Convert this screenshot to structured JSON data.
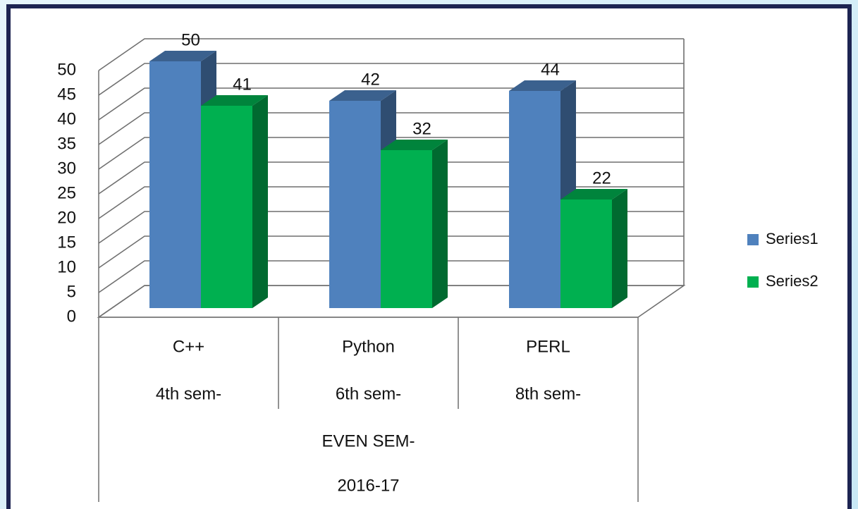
{
  "chart_data": {
    "type": "bar3d",
    "categories": [
      "C++",
      "Python",
      "PERL"
    ],
    "subcategories": [
      "4th sem-",
      "6th sem-",
      "8th sem-"
    ],
    "group_labels": [
      "EVEN SEM-",
      "2016-17"
    ],
    "series": [
      {
        "name": "Series1",
        "color": "#4f81bd",
        "values": [
          50,
          42,
          44
        ]
      },
      {
        "name": "Series2",
        "color": "#00b050",
        "values": [
          41,
          32,
          22
        ]
      }
    ],
    "ylim": [
      0,
      50
    ],
    "yticks": [
      0,
      5,
      10,
      15,
      20,
      25,
      30,
      35,
      40,
      45,
      50
    ],
    "grid": true,
    "legend": "right"
  }
}
